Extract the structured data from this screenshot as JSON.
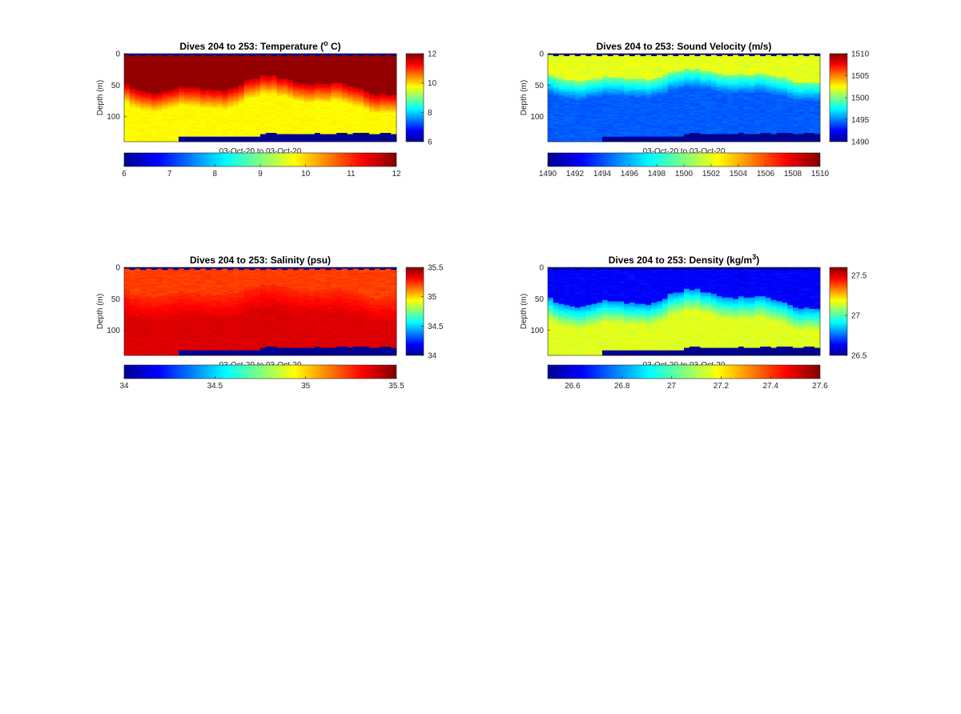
{
  "colormap": [
    "#00008f",
    "#0000ff",
    "#0080ff",
    "#00ffff",
    "#80ff80",
    "#ffff00",
    "#ff8000",
    "#ff0000",
    "#800000"
  ],
  "chart_data": [
    {
      "type": "heatmap",
      "variable": "temperature",
      "title": "Dives 204 to 253: Temperature (",
      "title_sup": "o",
      "title_tail": " C)",
      "xlabel": "03-Oct-20 to 03-Oct-20",
      "ylabel": "Depth (m)",
      "ylim": [
        0,
        140
      ],
      "yticks": [
        "0",
        "50",
        "100"
      ],
      "clim": [
        6,
        12
      ],
      "colorbar_ticks": [
        "6",
        "8",
        "10",
        "12"
      ],
      "horizontal_colorbar_ticks": [
        "6",
        "7",
        "8",
        "9",
        "10",
        "11",
        "12"
      ],
      "dives": [
        204,
        253
      ]
    },
    {
      "type": "heatmap",
      "variable": "sound_velocity",
      "title": "Dives 204 to 253: Sound Velocity (m/s)",
      "xlabel": "03-Oct-20 to 03-Oct-20",
      "ylabel": "Depth (m)",
      "ylim": [
        0,
        140
      ],
      "yticks": [
        "0",
        "50",
        "100"
      ],
      "clim": [
        1490,
        1510
      ],
      "colorbar_ticks": [
        "1490",
        "1495",
        "1500",
        "1505",
        "1510"
      ],
      "horizontal_colorbar_ticks": [
        "1490",
        "1492",
        "1494",
        "1496",
        "1498",
        "1500",
        "1502",
        "1504",
        "1506",
        "1508",
        "1510"
      ],
      "dives": [
        204,
        253
      ]
    },
    {
      "type": "heatmap",
      "variable": "salinity",
      "title": "Dives 204 to 253: Salinity (psu)",
      "xlabel": "03-Oct-20 to 03-Oct-20",
      "ylabel": "Depth (m)",
      "ylim": [
        0,
        140
      ],
      "yticks": [
        "0",
        "50",
        "100"
      ],
      "clim": [
        34,
        35.5
      ],
      "colorbar_ticks": [
        "34",
        "34.5",
        "35",
        "35.5"
      ],
      "horizontal_colorbar_ticks": [
        "34",
        "34.5",
        "35",
        "35.5"
      ],
      "dives": [
        204,
        253
      ]
    },
    {
      "type": "heatmap",
      "variable": "density",
      "title": "Dives 204 to 253: Density (kg/m",
      "title_sup": "3",
      "title_tail": ")",
      "xlabel": "03-Oct-20 to 03-Oct-20",
      "ylabel": "Depth (m)",
      "ylim": [
        0,
        140
      ],
      "yticks": [
        "0",
        "50",
        "100"
      ],
      "clim": [
        26.5,
        27.6
      ],
      "colorbar_ticks": [
        "26.5",
        "27",
        "27.5"
      ],
      "horizontal_colorbar_ticks": [
        "26.6",
        "26.8",
        "27",
        "27.2",
        "27.4",
        "27.6"
      ],
      "dives": [
        204,
        253
      ]
    }
  ]
}
